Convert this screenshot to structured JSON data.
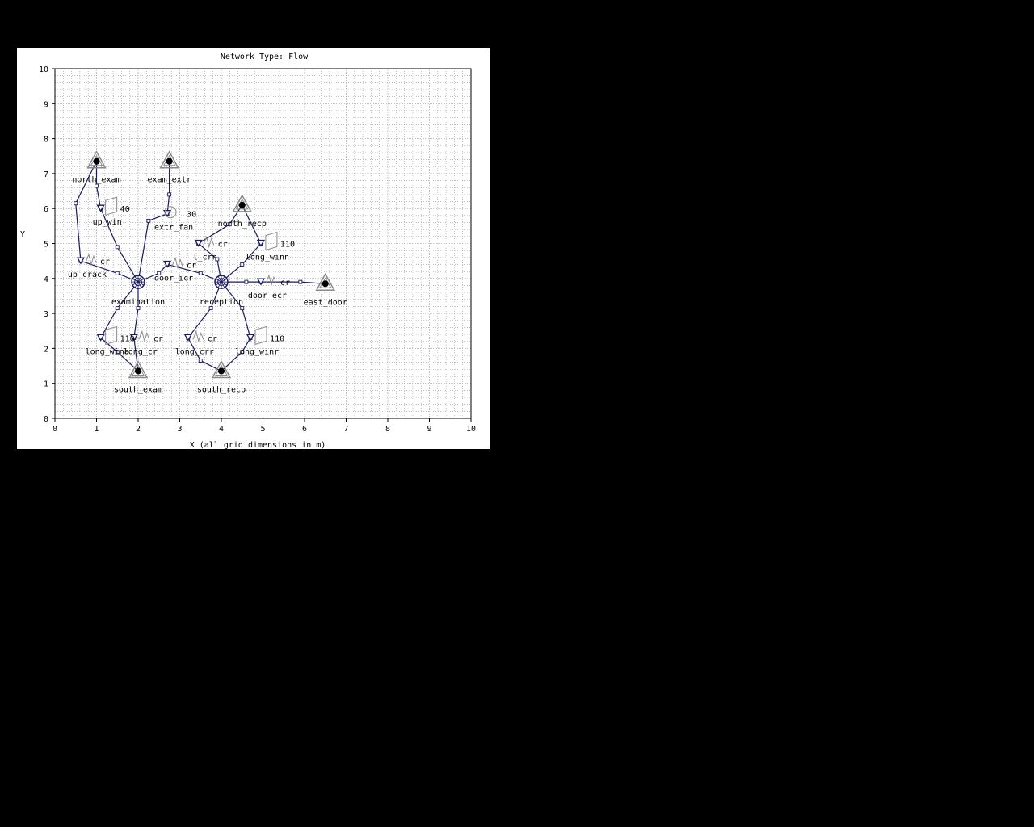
{
  "diagram": {
    "title": "Network Type: Flow",
    "xlabel": "X (all grid dimensions in m)",
    "ylabel": "Y",
    "x_range": [
      0,
      10
    ],
    "y_range": [
      0,
      10
    ],
    "x_ticks": [
      "0",
      "1",
      "2",
      "3",
      "4",
      "5",
      "6",
      "7",
      "8",
      "9",
      "10"
    ],
    "y_ticks": [
      "0",
      "1",
      "2",
      "3",
      "4",
      "5",
      "6",
      "7",
      "8",
      "9",
      "10"
    ],
    "colors": {
      "link": "#1a1a5e",
      "node_fill": "#000000",
      "boundary_symbol": "#8a8a8a",
      "grid": "#9a9a9a",
      "background": "#ffffff"
    },
    "internal_nodes": [
      {
        "id": "examination",
        "label": "examination",
        "x": 2.0,
        "y": 3.9
      },
      {
        "id": "reception",
        "label": "reception",
        "x": 4.0,
        "y": 3.9
      }
    ],
    "boundary_nodes": [
      {
        "id": "north_exam",
        "label": "north_exam",
        "x": 1.0,
        "y": 7.35
      },
      {
        "id": "exam_extr",
        "label": "exam_extr",
        "x": 2.75,
        "y": 7.35
      },
      {
        "id": "north_recp",
        "label": "north_recp",
        "x": 4.5,
        "y": 6.1
      },
      {
        "id": "east_door",
        "label": "east_door",
        "x": 6.5,
        "y": 3.85
      },
      {
        "id": "south_exam",
        "label": "south_exam",
        "x": 2.0,
        "y": 1.35
      },
      {
        "id": "south_recp",
        "label": "south_recp",
        "x": 4.0,
        "y": 1.35
      }
    ],
    "components": [
      {
        "id": "up_win",
        "label": "up_win",
        "value": "40",
        "icon": "window-icon",
        "x": 1.1,
        "y": 6.0
      },
      {
        "id": "extr_fan",
        "label": "extr_fan",
        "value": "30",
        "icon": "fan-icon",
        "x": 2.7,
        "y": 5.85
      },
      {
        "id": "up_crack",
        "label": "up_crack",
        "value": "cr",
        "icon": "crack-icon",
        "x": 0.62,
        "y": 4.5
      },
      {
        "id": "door_icr",
        "label": "door_icr",
        "value": "cr",
        "icon": "crack-icon",
        "x": 2.7,
        "y": 4.4
      },
      {
        "id": "l_crn",
        "label": "l_crn",
        "value": "cr",
        "icon": "crack-icon",
        "x": 3.45,
        "y": 5.0
      },
      {
        "id": "long_winn",
        "label": "long_winn",
        "value": "110",
        "icon": "window-icon",
        "x": 4.95,
        "y": 5.0
      },
      {
        "id": "door_ecr",
        "label": "door_ecr",
        "value": "cr",
        "icon": "crack-icon",
        "x": 4.95,
        "y": 3.9
      },
      {
        "id": "long_wina",
        "label": "long_wina",
        "value": "110",
        "icon": "window-icon",
        "x": 1.1,
        "y": 2.3
      },
      {
        "id": "long_cr",
        "label": "long_cr",
        "value": "cr",
        "icon": "crack-icon",
        "x": 1.9,
        "y": 2.3
      },
      {
        "id": "long_crr",
        "label": "long_crr",
        "value": "cr",
        "icon": "crack-icon",
        "x": 3.2,
        "y": 2.3
      },
      {
        "id": "long_winr",
        "label": "long_winr",
        "value": "110",
        "icon": "window-icon",
        "x": 4.7,
        "y": 2.3
      }
    ],
    "links": [
      {
        "id": "link-up_win",
        "path": [
          [
            1.0,
            7.35
          ],
          [
            1.0,
            6.65
          ],
          [
            1.1,
            6.0
          ],
          [
            1.5,
            4.9
          ],
          [
            2.0,
            3.9
          ]
        ]
      },
      {
        "id": "link-up_crack",
        "path": [
          [
            1.0,
            7.35
          ],
          [
            0.5,
            6.15
          ],
          [
            0.62,
            4.5
          ],
          [
            1.5,
            4.15
          ],
          [
            2.0,
            3.9
          ]
        ]
      },
      {
        "id": "link-extr_fan",
        "path": [
          [
            2.75,
            7.35
          ],
          [
            2.75,
            6.4
          ],
          [
            2.7,
            5.85
          ],
          [
            2.25,
            5.65
          ],
          [
            2.0,
            3.9
          ]
        ]
      },
      {
        "id": "link-door_icr",
        "path": [
          [
            2.0,
            3.9
          ],
          [
            2.5,
            4.15
          ],
          [
            2.7,
            4.4
          ],
          [
            3.5,
            4.15
          ],
          [
            4.0,
            3.9
          ]
        ]
      },
      {
        "id": "link-l_crn",
        "path": [
          [
            4.5,
            6.1
          ],
          [
            4.2,
            5.55
          ],
          [
            3.45,
            5.0
          ],
          [
            3.9,
            4.55
          ],
          [
            4.0,
            3.9
          ]
        ]
      },
      {
        "id": "link-long_winn",
        "path": [
          [
            4.5,
            6.1
          ],
          [
            4.95,
            5.0
          ],
          [
            4.5,
            4.4
          ],
          [
            4.0,
            3.9
          ]
        ]
      },
      {
        "id": "link-door_ecr",
        "path": [
          [
            6.5,
            3.85
          ],
          [
            5.9,
            3.9
          ],
          [
            4.95,
            3.9
          ],
          [
            4.6,
            3.9
          ],
          [
            4.0,
            3.9
          ]
        ]
      },
      {
        "id": "link-long_wina",
        "path": [
          [
            2.0,
            3.9
          ],
          [
            1.5,
            3.15
          ],
          [
            1.1,
            2.3
          ],
          [
            1.5,
            1.9
          ],
          [
            2.0,
            1.35
          ]
        ]
      },
      {
        "id": "link-long_cr",
        "path": [
          [
            2.0,
            3.9
          ],
          [
            2.0,
            3.15
          ],
          [
            1.9,
            2.3
          ],
          [
            2.0,
            1.35
          ]
        ]
      },
      {
        "id": "link-long_crr",
        "path": [
          [
            4.0,
            3.9
          ],
          [
            3.75,
            3.15
          ],
          [
            3.2,
            2.3
          ],
          [
            3.5,
            1.65
          ],
          [
            4.0,
            1.35
          ]
        ]
      },
      {
        "id": "link-long_winr",
        "path": [
          [
            4.0,
            3.9
          ],
          [
            4.5,
            3.15
          ],
          [
            4.7,
            2.3
          ],
          [
            4.5,
            1.9
          ],
          [
            4.0,
            1.35
          ]
        ]
      }
    ]
  }
}
